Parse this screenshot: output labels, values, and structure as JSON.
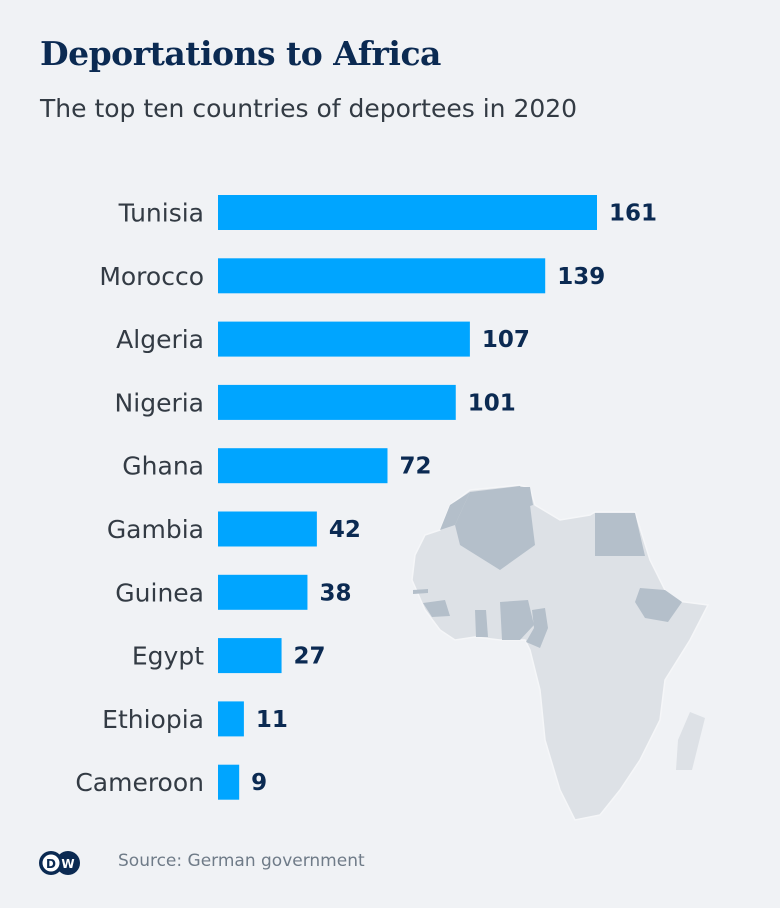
{
  "title": "Deportations to Africa",
  "subtitle": "The top ten countries of deportees in 2020",
  "source": "Source: German government",
  "logo": "DW",
  "colors": {
    "bar": "#00a5ff",
    "title": "#0b2a52",
    "background": "#f0f2f5",
    "map_highlight": "#b4bfca",
    "map_base": "#dde1e6"
  },
  "chart_data": {
    "type": "bar",
    "orientation": "horizontal",
    "title": "Deportations to Africa",
    "subtitle": "The top ten countries of deportees in 2020",
    "categories": [
      "Tunisia",
      "Morocco",
      "Algeria",
      "Nigeria",
      "Ghana",
      "Gambia",
      "Guinea",
      "Egypt",
      "Ethiopia",
      "Cameroon"
    ],
    "values": [
      161,
      139,
      107,
      101,
      72,
      42,
      38,
      27,
      11,
      9
    ],
    "data_labels": true,
    "grid": false,
    "xlim": [
      0,
      161
    ]
  },
  "map": {
    "highlighted": [
      "Tunisia",
      "Morocco",
      "Algeria",
      "Nigeria",
      "Ghana",
      "Gambia",
      "Guinea",
      "Egypt",
      "Ethiopia",
      "Cameroon"
    ]
  }
}
